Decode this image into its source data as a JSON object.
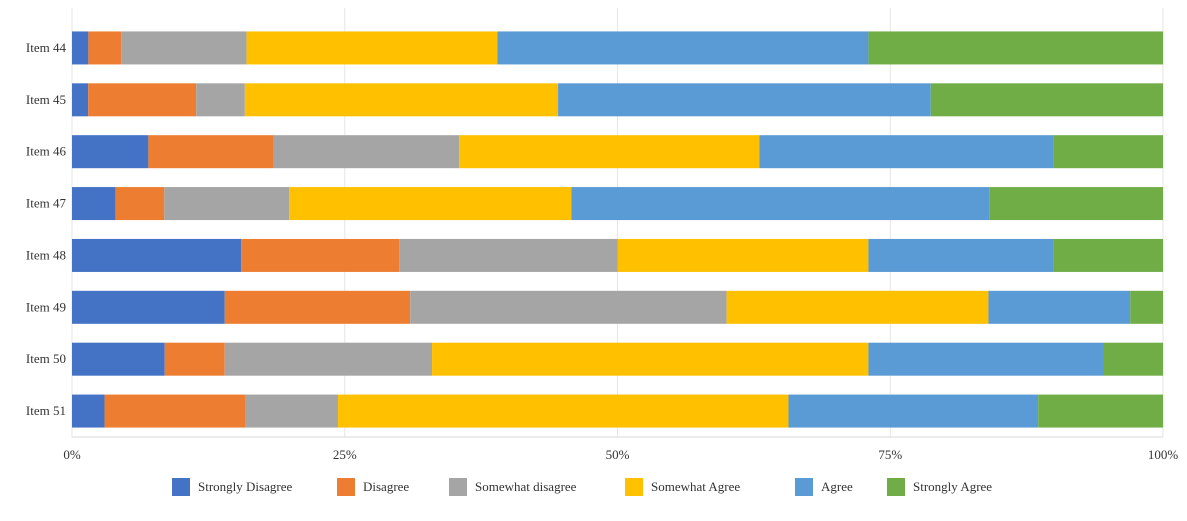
{
  "chart_data": {
    "type": "bar",
    "orientation": "horizontal",
    "stacked": "percent",
    "categories": [
      "Item 44",
      "Item 45",
      "Item 46",
      "Item 47",
      "Item 48",
      "Item 49",
      "Item 50",
      "Item 51"
    ],
    "series": [
      {
        "name": "Strongly Disagree",
        "color": "#4472C4",
        "values": [
          1.5,
          1.5,
          7,
          4,
          15.5,
          14,
          8.5,
          3
        ]
      },
      {
        "name": "Disagree",
        "color": "#ED7D31",
        "values": [
          3,
          10,
          11.5,
          4.5,
          14.5,
          17,
          5.5,
          13
        ]
      },
      {
        "name": "Somewhat disagree",
        "color": "#A5A5A5",
        "values": [
          11.5,
          4.5,
          17,
          11.5,
          20,
          29,
          19,
          8.5
        ]
      },
      {
        "name": "Somewhat Agree",
        "color": "#FFC000",
        "values": [
          23,
          29,
          27.5,
          26,
          23,
          24,
          40,
          41.5
        ]
      },
      {
        "name": "Agree",
        "color": "#5B9BD5",
        "values": [
          34,
          34.5,
          27,
          38.5,
          17,
          13,
          21.5,
          23
        ]
      },
      {
        "name": "Strongly Agree",
        "color": "#70AD47",
        "values": [
          27,
          21.5,
          10,
          16,
          10,
          3,
          5.5,
          11.5
        ]
      }
    ],
    "x_ticks": [
      "0%",
      "25%",
      "50%",
      "75%",
      "100%"
    ],
    "xlim": [
      0,
      100
    ],
    "grid": true,
    "legend_position": "bottom",
    "title": "",
    "xlabel": "",
    "ylabel": ""
  }
}
